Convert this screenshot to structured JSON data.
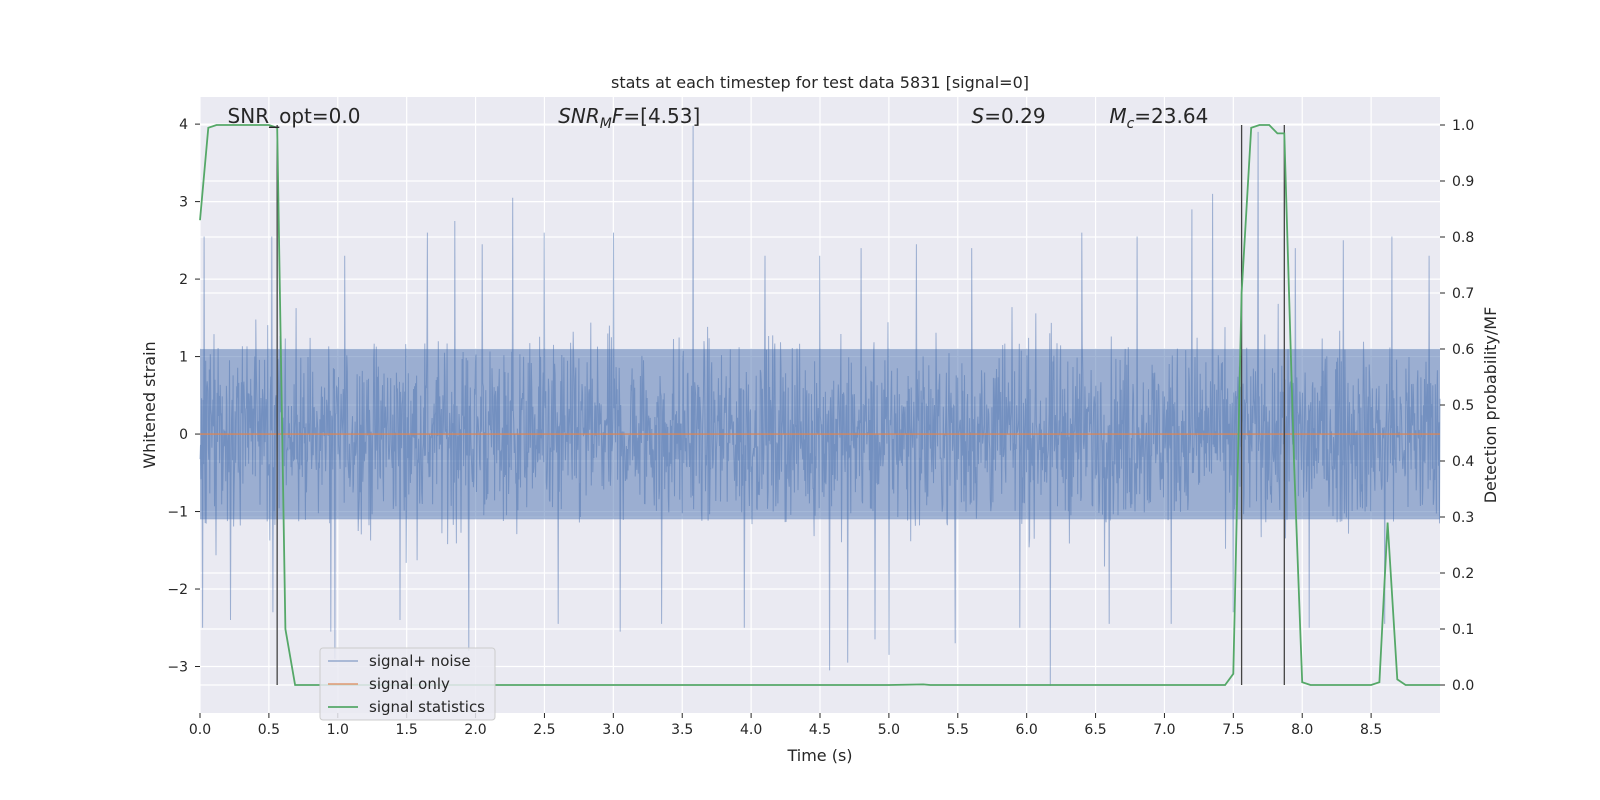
{
  "chart_data": {
    "type": "line",
    "title": "stats at each timestep for test data 5831 [signal=0]",
    "xlabel": "Time (s)",
    "ylabel_left": "Whitened strain",
    "ylabel_right": "Detection probability/MF",
    "xlim": [
      0.0,
      9.0
    ],
    "ylim_left": [
      -3.6,
      4.35
    ],
    "ylim_right": [
      -0.05,
      1.05
    ],
    "x_ticks": [
      "0.0",
      "0.5",
      "1.0",
      "1.5",
      "2.0",
      "2.5",
      "3.0",
      "3.5",
      "4.0",
      "4.5",
      "5.0",
      "5.5",
      "6.0",
      "6.5",
      "7.0",
      "7.5",
      "8.0",
      "8.5"
    ],
    "x_tick_values": [
      0.0,
      0.5,
      1.0,
      1.5,
      2.0,
      2.5,
      3.0,
      3.5,
      4.0,
      4.5,
      5.0,
      5.5,
      6.0,
      6.5,
      7.0,
      7.5,
      8.0,
      8.5
    ],
    "y_ticks_left": [
      "−3",
      "−2",
      "−1",
      "0",
      "1",
      "2",
      "3",
      "4"
    ],
    "y_tick_values_left": [
      -3,
      -2,
      -1,
      0,
      1,
      2,
      3,
      4
    ],
    "y_ticks_right": [
      "0.0",
      "0.1",
      "0.2",
      "0.3",
      "0.4",
      "0.5",
      "0.6",
      "0.7",
      "0.8",
      "0.9",
      "1.0"
    ],
    "y_tick_values_right": [
      0.0,
      0.1,
      0.2,
      0.3,
      0.4,
      0.5,
      0.6,
      0.7,
      0.8,
      0.9,
      1.0
    ],
    "grid": true,
    "legend_position": "lower-left",
    "annotations": [
      {
        "key": "snr_opt",
        "text": "SNR_opt=0.0",
        "x": 0.2
      },
      {
        "key": "snr_mf",
        "text": "SNR_MF=[4.53]",
        "x": 2.6
      },
      {
        "key": "s",
        "text": "S=0.29",
        "x": 5.6
      },
      {
        "key": "mc",
        "text": "M_c=23.64",
        "x": 6.6
      }
    ],
    "vlines": [
      0.56,
      7.56,
      7.87
    ],
    "vline_range_right": [
      0.0,
      1.0
    ],
    "series": [
      {
        "name": "signal+ noise",
        "color": "#4c72b0",
        "axis": "left",
        "style": "noise",
        "x_range": [
          0.0,
          9.0
        ],
        "typical_range": [
          -1.1,
          1.1
        ],
        "peaks": [
          {
            "x": 0.03,
            "y": 2.55
          },
          {
            "x": 0.52,
            "y": 2.55
          },
          {
            "x": 0.95,
            "y": 2.95
          },
          {
            "x": 0.98,
            "y": 3.2
          },
          {
            "x": 1.05,
            "y": 2.3
          },
          {
            "x": 1.65,
            "y": 2.6
          },
          {
            "x": 1.85,
            "y": 2.75
          },
          {
            "x": 2.05,
            "y": 2.45
          },
          {
            "x": 2.27,
            "y": 3.05
          },
          {
            "x": 2.5,
            "y": 2.6
          },
          {
            "x": 3.0,
            "y": 2.6
          },
          {
            "x": 3.58,
            "y": 3.98
          },
          {
            "x": 4.1,
            "y": 2.3
          },
          {
            "x": 4.5,
            "y": 2.3
          },
          {
            "x": 4.8,
            "y": 2.4
          },
          {
            "x": 5.2,
            "y": 2.45
          },
          {
            "x": 5.6,
            "y": 2.4
          },
          {
            "x": 5.95,
            "y": 2.75
          },
          {
            "x": 6.4,
            "y": 2.6
          },
          {
            "x": 6.8,
            "y": 2.55
          },
          {
            "x": 7.2,
            "y": 2.9
          },
          {
            "x": 7.35,
            "y": 3.1
          },
          {
            "x": 7.68,
            "y": 3.9
          },
          {
            "x": 7.95,
            "y": 2.4
          },
          {
            "x": 8.3,
            "y": 2.5
          },
          {
            "x": 8.65,
            "y": 2.55
          },
          {
            "x": 8.92,
            "y": 2.3
          }
        ],
        "troughs": [
          {
            "x": 0.02,
            "y": -2.5
          },
          {
            "x": 0.22,
            "y": -2.4
          },
          {
            "x": 0.53,
            "y": -2.3
          },
          {
            "x": 0.95,
            "y": -2.55
          },
          {
            "x": 0.98,
            "y": -2.9
          },
          {
            "x": 1.45,
            "y": -2.4
          },
          {
            "x": 1.95,
            "y": -2.8
          },
          {
            "x": 2.6,
            "y": -2.45
          },
          {
            "x": 3.05,
            "y": -2.55
          },
          {
            "x": 3.35,
            "y": -2.45
          },
          {
            "x": 3.95,
            "y": -2.5
          },
          {
            "x": 4.57,
            "y": -3.05
          },
          {
            "x": 4.7,
            "y": -2.95
          },
          {
            "x": 4.9,
            "y": -2.65
          },
          {
            "x": 5.0,
            "y": -2.85
          },
          {
            "x": 5.48,
            "y": -2.7
          },
          {
            "x": 5.95,
            "y": -2.5
          },
          {
            "x": 6.17,
            "y": -3.25
          },
          {
            "x": 6.6,
            "y": -2.45
          },
          {
            "x": 7.05,
            "y": -2.45
          },
          {
            "x": 7.5,
            "y": -2.3
          },
          {
            "x": 8.05,
            "y": -2.5
          },
          {
            "x": 8.6,
            "y": -2.45
          }
        ]
      },
      {
        "name": "signal only",
        "color": "#dd8452",
        "axis": "left",
        "x": [
          0.0,
          9.0
        ],
        "y": [
          0.0,
          0.0
        ]
      },
      {
        "name": "signal statistics",
        "color": "#55a868",
        "axis": "right",
        "x": [
          0.0,
          0.06,
          0.12,
          0.5,
          0.56,
          0.62,
          0.69,
          1.0,
          2.0,
          3.0,
          4.0,
          5.0,
          5.25,
          5.3,
          6.0,
          7.0,
          7.44,
          7.5,
          7.56,
          7.63,
          7.69,
          7.76,
          7.82,
          7.87,
          7.94,
          8.0,
          8.06,
          8.5,
          8.56,
          8.62,
          8.69,
          8.75,
          9.0
        ],
        "y": [
          0.83,
          0.995,
          1.0,
          1.0,
          0.995,
          0.1,
          0.0,
          0.0,
          0.0,
          0.0,
          0.0,
          0.0,
          0.001,
          0.0,
          0.0,
          0.0,
          0.0,
          0.02,
          0.7,
          0.995,
          1.0,
          1.0,
          0.985,
          0.985,
          0.4,
          0.005,
          0.0,
          0.0,
          0.005,
          0.29,
          0.01,
          0.0,
          0.0
        ]
      }
    ]
  }
}
